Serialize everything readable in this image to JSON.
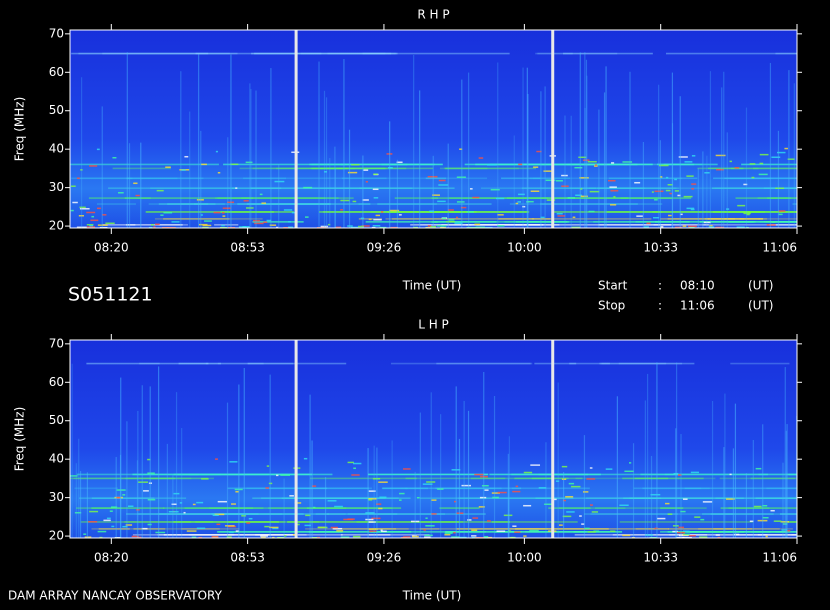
{
  "header": {
    "id": "S051121",
    "start_label": "Start",
    "stop_label": "Stop",
    "sep": ":",
    "start": "08:10",
    "stop": "11:06",
    "unit": "(UT)"
  },
  "footer": "DAM ARRAY  NANCAY OBSERVATORY",
  "chart_data": [
    {
      "type": "heatmap",
      "title": "R H P",
      "xlabel": "Time (UT)",
      "ylabel": "Freq (MHz)",
      "xlim": [
        490,
        666
      ],
      "xticks": [
        {
          "value": 500,
          "label": "08:20"
        },
        {
          "value": 533,
          "label": "08:53"
        },
        {
          "value": 566,
          "label": "09:26"
        },
        {
          "value": 600,
          "label": "10:00"
        },
        {
          "value": 633,
          "label": "10:33"
        },
        {
          "value": 666,
          "label": "11:06"
        }
      ],
      "ylim": [
        19.5,
        71
      ],
      "yticks": [
        20,
        30,
        40,
        50,
        60,
        70
      ]
    },
    {
      "type": "heatmap",
      "title": "L H P",
      "xlabel": "Time (UT)",
      "ylabel": "Freq (MHz)",
      "xlim": [
        490,
        666
      ],
      "xticks": [
        {
          "value": 500,
          "label": "08:20"
        },
        {
          "value": 533,
          "label": "08:53"
        },
        {
          "value": 566,
          "label": "09:26"
        },
        {
          "value": 600,
          "label": "10:00"
        },
        {
          "value": 633,
          "label": "10:33"
        },
        {
          "value": 666,
          "label": "11:06"
        }
      ],
      "ylim": [
        19.5,
        71
      ],
      "yticks": [
        20,
        30,
        40,
        50,
        60,
        70
      ]
    }
  ]
}
